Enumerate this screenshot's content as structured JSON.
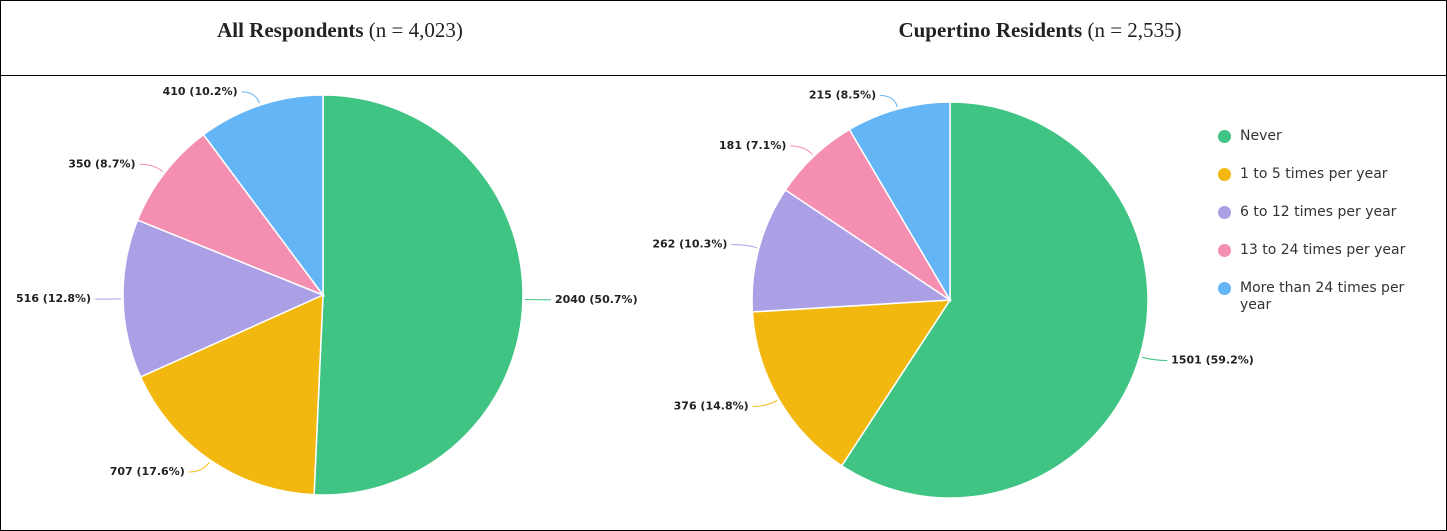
{
  "chart_data": [
    {
      "type": "pie",
      "title": "All Respondents",
      "subtitle": "(n = 4,023)",
      "values": [
        2040,
        707,
        516,
        350,
        410
      ],
      "value_labels": [
        "2040 (50.7%)",
        "707 (17.6%)",
        "516 (12.8%)",
        "350 (8.7%)",
        "410 (10.2%)"
      ]
    },
    {
      "type": "pie",
      "title": "Cupertino Residents",
      "subtitle": "(n = 2,535)",
      "values": [
        1501,
        376,
        262,
        181,
        215
      ],
      "value_labels": [
        "1501 (59.2%)",
        "376 (14.8%)",
        "262 (10.3%)",
        "181 (7.1%)",
        "215 (8.5%)"
      ]
    }
  ],
  "legend": {
    "position": "right",
    "categories": [
      "Never",
      "1 to 5 times per year",
      "6 to 12 times per year",
      "13 to 24 times per year",
      "More than 24 times per year"
    ],
    "colors": [
      "#40c483",
      "#f2b80f",
      "#ab9fe5",
      "#f48fb1",
      "#64b5f6"
    ]
  }
}
